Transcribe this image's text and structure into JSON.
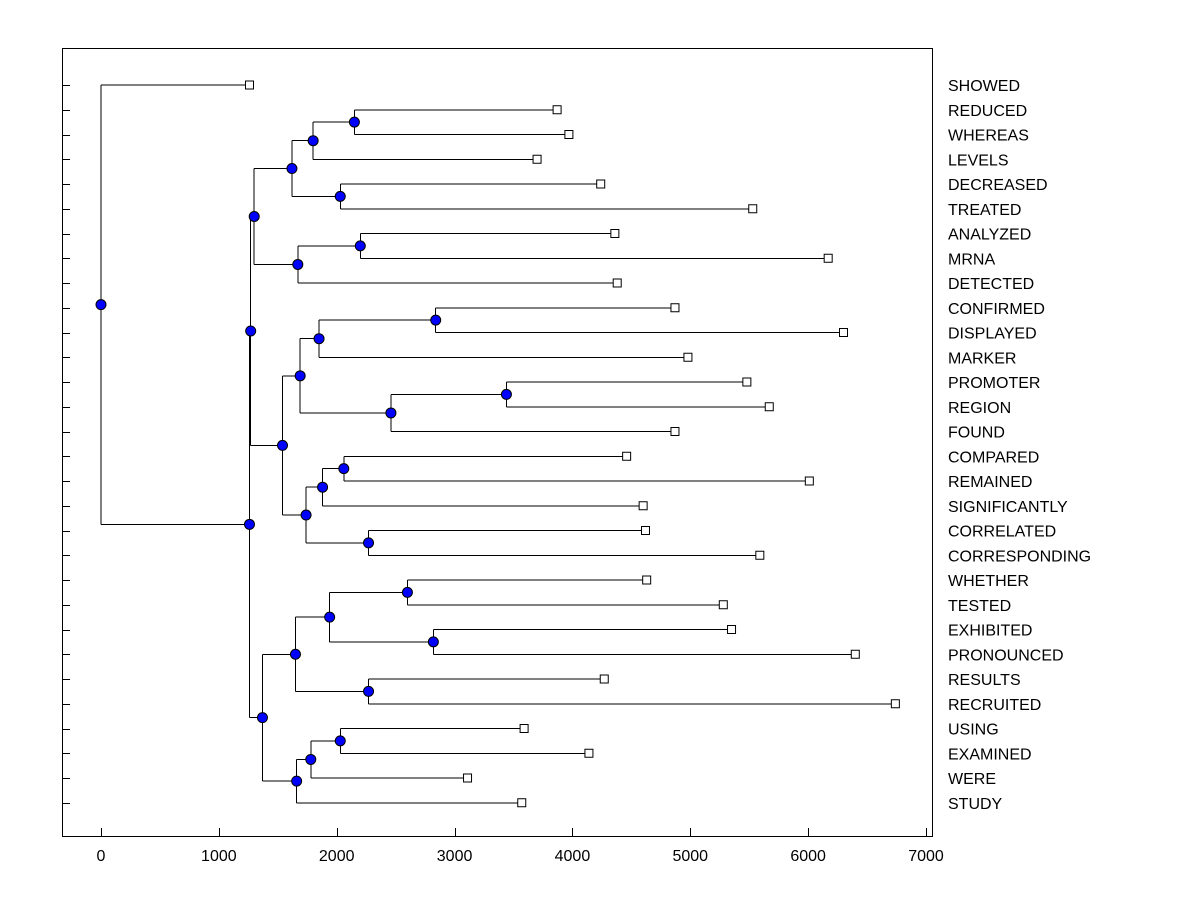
{
  "chart_data": {
    "type": "dendrogram",
    "orientation": "horizontal",
    "title": "",
    "xlabel": "",
    "ylabel": "",
    "xlim": [
      -320,
      7000
    ],
    "xticks": [
      0,
      1000,
      2000,
      3000,
      4000,
      5000,
      6000,
      7000
    ],
    "grid": false,
    "colors": {
      "node": "#0000ff",
      "leaf": "#ffffff",
      "line": "#000000"
    },
    "leaves": [
      {
        "label": "SHOWED",
        "x": 1260
      },
      {
        "label": "REDUCED",
        "x": 3870
      },
      {
        "label": "WHEREAS",
        "x": 3970
      },
      {
        "label": "LEVELS",
        "x": 3700
      },
      {
        "label": "DECREASED",
        "x": 4240
      },
      {
        "label": "TREATED",
        "x": 5530
      },
      {
        "label": "ANALYZED",
        "x": 4360
      },
      {
        "label": "MRNA",
        "x": 6170
      },
      {
        "label": "DETECTED",
        "x": 4380
      },
      {
        "label": "CONFIRMED",
        "x": 4870
      },
      {
        "label": "DISPLAYED",
        "x": 6300
      },
      {
        "label": "MARKER",
        "x": 4980
      },
      {
        "label": "PROMOTER",
        "x": 5480
      },
      {
        "label": "REGION",
        "x": 5670
      },
      {
        "label": "FOUND",
        "x": 4870
      },
      {
        "label": "COMPARED",
        "x": 4460
      },
      {
        "label": "REMAINED",
        "x": 6010
      },
      {
        "label": "SIGNIFICANTLY",
        "x": 4600
      },
      {
        "label": "CORRELATED",
        "x": 4620
      },
      {
        "label": "CORRESPONDING",
        "x": 5590
      },
      {
        "label": "WHETHER",
        "x": 4630
      },
      {
        "label": "TESTED",
        "x": 5280
      },
      {
        "label": "EXHIBITED",
        "x": 5350
      },
      {
        "label": "PRONOUNCED",
        "x": 6400
      },
      {
        "label": "RESULTS",
        "x": 4270
      },
      {
        "label": "RECRUITED",
        "x": 6740
      },
      {
        "label": "USING",
        "x": 3590
      },
      {
        "label": "EXAMINED",
        "x": 4140
      },
      {
        "label": "WERE",
        "x": 3110
      },
      {
        "label": "STUDY",
        "x": 3570
      }
    ],
    "merges": [
      {
        "id": "m1",
        "x": 2150,
        "children": [
          "REDUCED",
          "WHEREAS"
        ]
      },
      {
        "id": "m2",
        "x": 1800,
        "children": [
          "m1",
          "LEVELS"
        ]
      },
      {
        "id": "m3",
        "x": 2030,
        "children": [
          "DECREASED",
          "TREATED"
        ]
      },
      {
        "id": "m4",
        "x": 1620,
        "children": [
          "m2",
          "m3"
        ]
      },
      {
        "id": "m5",
        "x": 2200,
        "children": [
          "ANALYZED",
          "MRNA"
        ]
      },
      {
        "id": "m6",
        "x": 1670,
        "children": [
          "m5",
          "DETECTED"
        ]
      },
      {
        "id": "m7",
        "x": 1300,
        "children": [
          "m4",
          "m6"
        ]
      },
      {
        "id": "m8",
        "x": 2840,
        "children": [
          "CONFIRMED",
          "DISPLAYED"
        ]
      },
      {
        "id": "m9",
        "x": 1850,
        "children": [
          "m8",
          "MARKER"
        ]
      },
      {
        "id": "m10",
        "x": 3440,
        "children": [
          "PROMOTER",
          "REGION"
        ]
      },
      {
        "id": "m11",
        "x": 2460,
        "children": [
          "m10",
          "FOUND"
        ]
      },
      {
        "id": "m12",
        "x": 1690,
        "children": [
          "m9",
          "m11"
        ]
      },
      {
        "id": "m13",
        "x": 2060,
        "children": [
          "COMPARED",
          "REMAINED"
        ]
      },
      {
        "id": "m14",
        "x": 1880,
        "children": [
          "m13",
          "SIGNIFICANTLY"
        ]
      },
      {
        "id": "m15",
        "x": 2270,
        "children": [
          "CORRELATED",
          "CORRESPONDING"
        ]
      },
      {
        "id": "m16",
        "x": 1740,
        "children": [
          "m14",
          "m15"
        ]
      },
      {
        "id": "m17",
        "x": 1540,
        "children": [
          "m12",
          "m16"
        ]
      },
      {
        "id": "m18",
        "x": 1270,
        "children": [
          "m7",
          "m17"
        ]
      },
      {
        "id": "m19",
        "x": 2600,
        "children": [
          "WHETHER",
          "TESTED"
        ]
      },
      {
        "id": "m20",
        "x": 2820,
        "children": [
          "EXHIBITED",
          "PRONOUNCED"
        ]
      },
      {
        "id": "m21",
        "x": 1940,
        "children": [
          "m19",
          "m20"
        ]
      },
      {
        "id": "m22",
        "x": 2270,
        "children": [
          "RESULTS",
          "RECRUITED"
        ]
      },
      {
        "id": "m23",
        "x": 1650,
        "children": [
          "m21",
          "m22"
        ]
      },
      {
        "id": "m24",
        "x": 2030,
        "children": [
          "USING",
          "EXAMINED"
        ]
      },
      {
        "id": "m25",
        "x": 1780,
        "children": [
          "m24",
          "WERE"
        ]
      },
      {
        "id": "m26",
        "x": 1660,
        "children": [
          "m25",
          "STUDY"
        ]
      },
      {
        "id": "m27",
        "x": 1370,
        "children": [
          "m23",
          "m26"
        ]
      },
      {
        "id": "m28",
        "x": 1260,
        "children": [
          "m18",
          "m27"
        ]
      },
      {
        "id": "m29",
        "x": 0,
        "children": [
          "SHOWED",
          "m28"
        ]
      }
    ]
  }
}
